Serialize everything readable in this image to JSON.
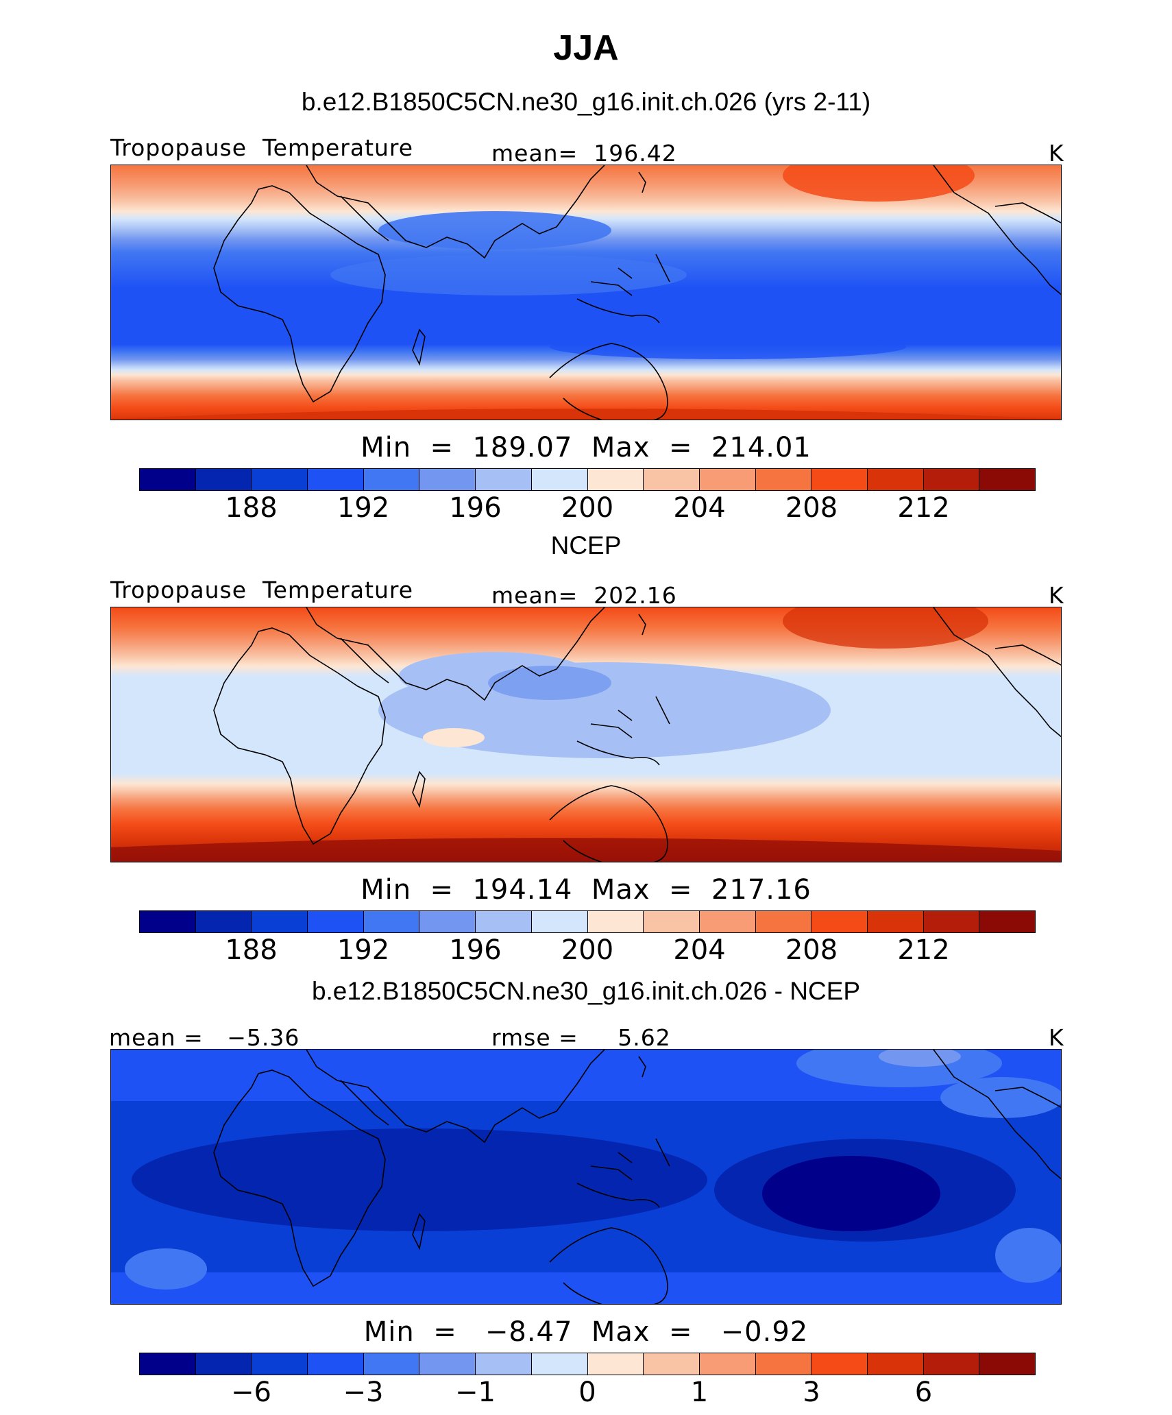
{
  "title": "JJA",
  "units_label": "K",
  "colors": [
    "#00008b",
    "#0325b0",
    "#0a3fd6",
    "#1f52f5",
    "#4177f2",
    "#7397f0",
    "#a6c0f5",
    "#d4e6fb",
    "#fde6d3",
    "#f9c3a5",
    "#f79c75",
    "#f6743f",
    "#f44b17",
    "#d83309",
    "#b31d0a",
    "#8c0a06"
  ],
  "coastline_style": "black outline (Africa, Eurasia, Maritime Continent, Australia, Americas)",
  "panels": [
    {
      "title": "b.e12.B1850C5CN.ne30_g16.init.ch.026 (yrs 2-11)",
      "left_label": "Tropopause  Temperature",
      "center_label": "mean=  196.42",
      "right_label": "K",
      "stats": "Min  =  189.07  Max  =  214.01",
      "tick_labels": [
        "188",
        "192",
        "196",
        "200",
        "204",
        "208",
        "212"
      ]
    },
    {
      "title": "NCEP",
      "left_label": "Tropopause  Temperature",
      "center_label": "mean=  202.16",
      "right_label": "K",
      "stats": "Min  =  194.14  Max  =  217.16",
      "tick_labels": [
        "188",
        "192",
        "196",
        "200",
        "204",
        "208",
        "212"
      ]
    },
    {
      "title": "b.e12.B1850C5CN.ne30_g16.init.ch.026 - NCEP",
      "left_label": "mean =   −5.36",
      "center_label": "rmse =     5.62",
      "right_label": "K",
      "stats": "Min  =   −8.47  Max  =   −0.92",
      "tick_labels": [
        "−6",
        "−3",
        "−1",
        "0",
        "1",
        "3",
        "6"
      ]
    }
  ]
}
